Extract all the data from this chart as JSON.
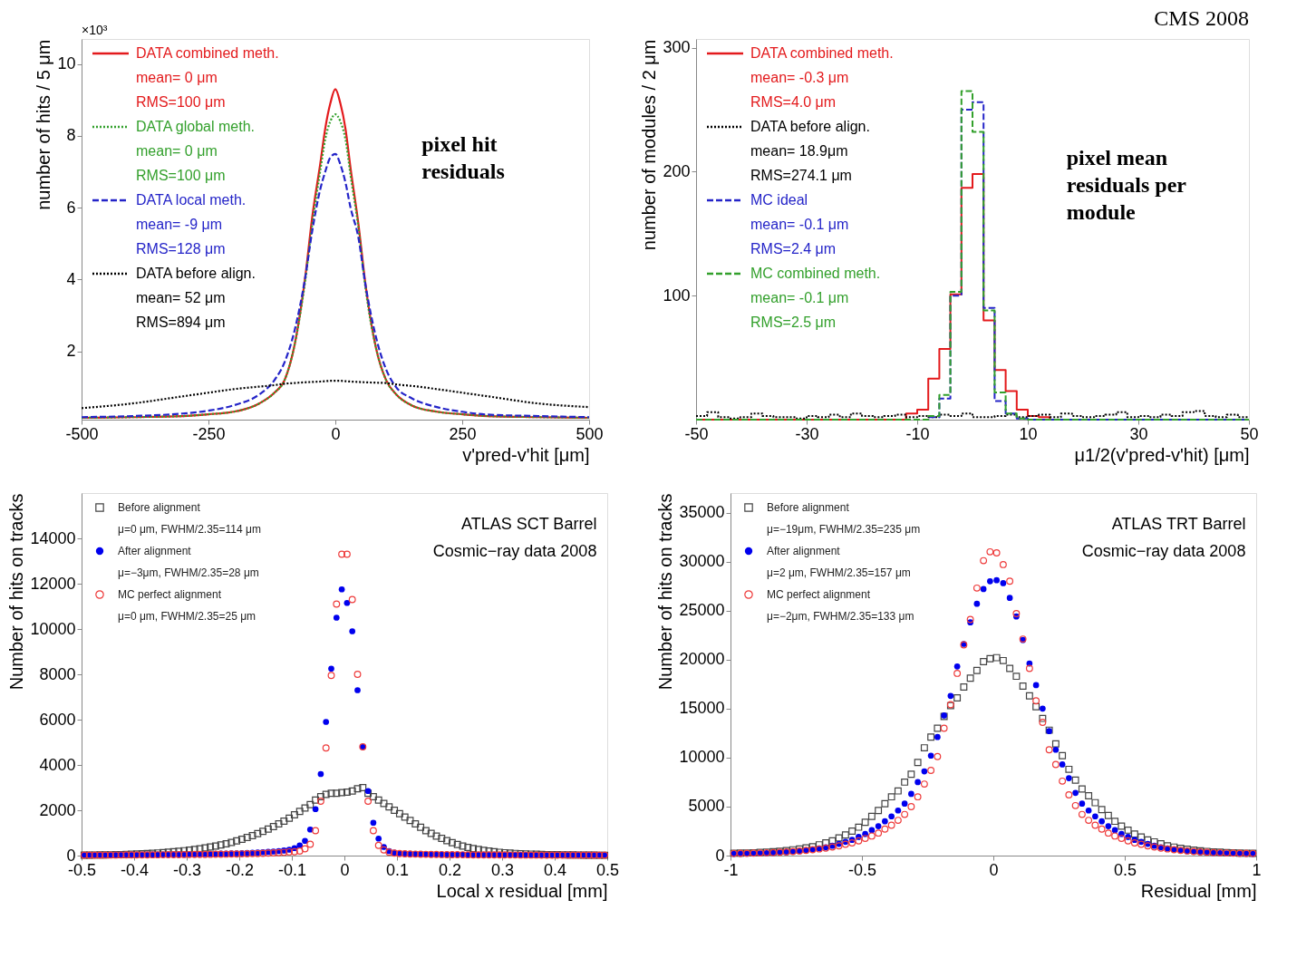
{
  "chart_data": [
    {
      "type": "line",
      "xlabel": "v'pred-v'hit [μm]",
      "ylabel": "number of hits / 5 μm",
      "xlim": [
        -500,
        500
      ],
      "ylim": [
        0.1,
        10.7
      ],
      "xticks": [
        -500,
        -250,
        0,
        250,
        500
      ],
      "yticks": [
        2,
        4,
        6,
        8,
        10
      ],
      "legend": "top left",
      "annotations": [
        "×10³",
        "pixel hit\nresiduals"
      ],
      "x": [
        -500,
        -400,
        -300,
        -250,
        -200,
        -150,
        -120,
        -100,
        -80,
        -60,
        -45,
        -30,
        -20,
        -10,
        0,
        10,
        20,
        30,
        45,
        60,
        80,
        100,
        120,
        150,
        200,
        250,
        300,
        400,
        500
      ],
      "series": [
        {
          "name": "DATA combined meth.\nmean= 0 μm\nRMS=100 μm",
          "color": "#e31a1c",
          "line_style": "solid",
          "values": [
            0.15,
            0.17,
            0.2,
            0.25,
            0.32,
            0.55,
            0.85,
            1.2,
            2.2,
            4.0,
            5.8,
            7.2,
            8.2,
            8.9,
            9.3,
            8.9,
            8.2,
            7.1,
            5.6,
            3.8,
            2.1,
            1.2,
            0.8,
            0.5,
            0.32,
            0.25,
            0.2,
            0.17,
            0.15
          ]
        },
        {
          "name": "DATA global meth.\nmean= 0 μm\nRMS=100 μm",
          "color": "#33a02c",
          "line_style": "dotted",
          "values": [
            0.15,
            0.17,
            0.2,
            0.25,
            0.32,
            0.55,
            0.85,
            1.2,
            2.2,
            3.9,
            5.6,
            7.0,
            7.9,
            8.4,
            8.6,
            8.4,
            7.9,
            6.9,
            5.5,
            3.7,
            2.1,
            1.2,
            0.8,
            0.5,
            0.32,
            0.25,
            0.2,
            0.17,
            0.15
          ]
        },
        {
          "name": "DATA local meth.\nmean= -9 μm\nRMS=128 μm",
          "color": "#2424c8",
          "line_style": "dashed",
          "values": [
            0.17,
            0.2,
            0.27,
            0.35,
            0.5,
            0.8,
            1.2,
            1.7,
            2.6,
            4.0,
            5.4,
            6.5,
            7.0,
            7.4,
            7.5,
            7.2,
            6.7,
            6.0,
            5.2,
            3.8,
            2.4,
            1.5,
            1.0,
            0.7,
            0.45,
            0.32,
            0.24,
            0.2,
            0.17
          ]
        },
        {
          "name": "DATA before align.\nmean= 52 μm\nRMS=894 μm",
          "color": "#000000",
          "line_style": "dotted",
          "values": [
            0.42,
            0.55,
            0.75,
            0.85,
            0.95,
            1.02,
            1.06,
            1.1,
            1.12,
            1.14,
            1.15,
            1.16,
            1.17,
            1.18,
            1.18,
            1.18,
            1.17,
            1.16,
            1.15,
            1.14,
            1.13,
            1.12,
            1.08,
            1.04,
            0.95,
            0.85,
            0.75,
            0.55,
            0.45
          ]
        }
      ]
    },
    {
      "type": "histogram",
      "xlabel": "μ1/2(v'pred-v'hit) [μm]",
      "ylabel": "number of modules / 2 μm",
      "xlim": [
        -50,
        50
      ],
      "ylim": [
        0,
        307
      ],
      "xticks": [
        -50,
        -30,
        -10,
        10,
        30,
        50
      ],
      "yticks": [
        100,
        200,
        300
      ],
      "legend": "top left",
      "annotations": [
        "CMS 2008",
        "pixel  mean\nresiduals per\nmodule"
      ],
      "bins": [
        -50,
        -48,
        -46,
        -44,
        -42,
        -40,
        -38,
        -36,
        -34,
        -32,
        -30,
        -28,
        -26,
        -24,
        -22,
        -20,
        -18,
        -16,
        -14,
        -12,
        -10,
        -8,
        -6,
        -4,
        -2,
        0,
        2,
        4,
        6,
        8,
        10,
        12,
        14,
        16,
        18,
        20,
        22,
        24,
        26,
        28,
        30,
        32,
        34,
        36,
        38,
        40,
        42,
        44,
        46,
        48,
        50
      ],
      "series": [
        {
          "name": "DATA combined meth.\nmean= -0.3 μm\nRMS=4.0 μm",
          "color": "#e31a1c",
          "line_style": "solid",
          "values": [
            0,
            0,
            0,
            0,
            0,
            0,
            0,
            0,
            0,
            0,
            0,
            0,
            0,
            0,
            0,
            0,
            0,
            0,
            0,
            5,
            8,
            33,
            57,
            101,
            187,
            198,
            80,
            40,
            23,
            8,
            3,
            2,
            0,
            0,
            0,
            0,
            0,
            0,
            0,
            0,
            0,
            0,
            0,
            0,
            0,
            0,
            0,
            0,
            0,
            0
          ]
        },
        {
          "name": "DATA before align.\nmean= 18.9μm\nRMS=274.1 μm",
          "color": "#000000",
          "line_style": "dotted",
          "values": [
            3,
            6,
            2,
            1,
            2,
            5,
            3,
            2,
            2,
            1,
            3,
            2,
            4,
            2,
            5,
            3,
            2,
            3,
            4,
            2,
            3,
            2,
            4,
            3,
            5,
            2,
            2,
            3,
            4,
            2,
            3,
            4,
            2,
            5,
            3,
            2,
            3,
            4,
            6,
            2,
            3,
            2,
            4,
            3,
            6,
            7,
            3,
            2,
            4,
            2
          ]
        },
        {
          "name": "MC ideal\nmean= -0.1 μm\nRMS=2.4 μm",
          "color": "#2424c8",
          "line_style": "dashed",
          "values": [
            0,
            0,
            0,
            0,
            0,
            0,
            0,
            0,
            0,
            0,
            0,
            0,
            0,
            0,
            0,
            0,
            0,
            0,
            0,
            0,
            0,
            2,
            17,
            100,
            250,
            256,
            90,
            15,
            5,
            1,
            0,
            0,
            0,
            0,
            0,
            0,
            0,
            0,
            0,
            0,
            0,
            0,
            0,
            0,
            0,
            0,
            0,
            0,
            0,
            0
          ]
        },
        {
          "name": "MC combined meth.\nmean= -0.1 μm\nRMS=2.5 μm",
          "color": "#33a02c",
          "line_style": "dashed",
          "values": [
            0,
            0,
            0,
            0,
            0,
            0,
            0,
            0,
            0,
            0,
            0,
            0,
            0,
            0,
            0,
            0,
            0,
            0,
            0,
            0,
            0,
            3,
            20,
            103,
            265,
            232,
            88,
            22,
            5,
            1,
            0,
            0,
            0,
            0,
            0,
            0,
            0,
            0,
            0,
            0,
            0,
            0,
            0,
            0,
            0,
            0,
            0,
            0,
            0,
            0
          ]
        }
      ]
    },
    {
      "type": "scatter",
      "xlabel": "Local x residual [mm]",
      "ylabel": "Number of hits on tracks",
      "xlim": [
        -0.5,
        0.5
      ],
      "ylim": [
        0,
        16000
      ],
      "xticks": [
        -0.5,
        -0.4,
        -0.3,
        -0.2,
        -0.1,
        0,
        0.1,
        0.2,
        0.3,
        0.4,
        0.5
      ],
      "yticks": [
        0,
        2000,
        4000,
        6000,
        8000,
        10000,
        12000,
        14000
      ],
      "legend": "top left",
      "annotations": [
        "ATLAS SCT Barrel",
        "Cosmic−ray data 2008"
      ],
      "x": [
        -0.495,
        -0.485,
        -0.475,
        -0.465,
        -0.455,
        -0.445,
        -0.435,
        -0.425,
        -0.415,
        -0.405,
        -0.395,
        -0.385,
        -0.375,
        -0.365,
        -0.355,
        -0.345,
        -0.335,
        -0.325,
        -0.315,
        -0.305,
        -0.295,
        -0.285,
        -0.275,
        -0.265,
        -0.255,
        -0.245,
        -0.235,
        -0.225,
        -0.215,
        -0.205,
        -0.195,
        -0.185,
        -0.175,
        -0.165,
        -0.155,
        -0.145,
        -0.135,
        -0.125,
        -0.115,
        -0.105,
        -0.095,
        -0.085,
        -0.075,
        -0.065,
        -0.055,
        -0.045,
        -0.035,
        -0.025,
        -0.015,
        -0.005,
        0.005,
        0.015,
        0.025,
        0.035,
        0.045,
        0.055,
        0.065,
        0.075,
        0.085,
        0.095,
        0.105,
        0.115,
        0.125,
        0.135,
        0.145,
        0.155,
        0.165,
        0.175,
        0.185,
        0.195,
        0.205,
        0.215,
        0.225,
        0.235,
        0.245,
        0.255,
        0.265,
        0.275,
        0.285,
        0.295,
        0.305,
        0.315,
        0.325,
        0.335,
        0.345,
        0.355,
        0.365,
        0.375,
        0.385,
        0.395,
        0.405,
        0.415,
        0.425,
        0.435,
        0.445,
        0.455,
        0.465,
        0.475,
        0.485,
        0.495
      ],
      "series": [
        {
          "name": "Before alignment\nμ=0 μm, FWHM/2.35=114 μm",
          "color": "#444444",
          "marker": "square",
          "values": [
            20,
            22,
            25,
            28,
            32,
            36,
            40,
            45,
            50,
            60,
            70,
            80,
            90,
            100,
            115,
            130,
            150,
            170,
            190,
            215,
            240,
            270,
            300,
            340,
            380,
            420,
            470,
            520,
            580,
            650,
            720,
            800,
            880,
            970,
            1070,
            1170,
            1280,
            1400,
            1520,
            1650,
            1800,
            1950,
            2100,
            2250,
            2450,
            2600,
            2700,
            2750,
            2750,
            2780,
            2800,
            2850,
            2950,
            3000,
            2750,
            2600,
            2450,
            2300,
            2150,
            2000,
            1850,
            1700,
            1550,
            1400,
            1250,
            1100,
            980,
            860,
            760,
            660,
            570,
            490,
            420,
            360,
            310,
            270,
            230,
            200,
            170,
            145,
            125,
            110,
            95,
            85,
            75,
            65,
            58,
            52,
            46,
            42,
            38,
            34,
            30,
            27,
            24,
            22,
            20,
            18,
            16,
            15
          ]
        },
        {
          "name": "After alignment\nμ=−3μm, FWHM/2.35=28 μm",
          "color": "#0000ee",
          "marker": "circle",
          "values": [
            25,
            25,
            28,
            28,
            30,
            30,
            32,
            33,
            35,
            37,
            38,
            40,
            42,
            44,
            46,
            48,
            50,
            52,
            55,
            58,
            60,
            63,
            66,
            70,
            74,
            78,
            82,
            88,
            94,
            100,
            108,
            115,
            125,
            135,
            150,
            165,
            180,
            200,
            225,
            260,
            330,
            450,
            650,
            1150,
            2050,
            3600,
            5900,
            8250,
            10500,
            11750,
            11150,
            9900,
            7300,
            4800,
            2850,
            1450,
            750,
            380,
            200,
            130,
            100,
            85,
            75,
            68,
            62,
            58,
            54,
            50,
            47,
            44,
            42,
            40,
            38,
            36,
            35,
            34,
            33,
            32,
            31,
            30,
            29,
            28,
            28,
            27,
            27,
            26,
            26,
            25,
            25,
            25,
            24,
            24,
            24,
            23,
            23,
            23,
            22,
            22,
            22,
            22
          ]
        },
        {
          "name": "MC perfect alignment\nμ=0 μm, FWHM/2.35=25 μm",
          "color": "#ee3b3b",
          "marker": "circle",
          "values": [
            20,
            20,
            22,
            22,
            24,
            24,
            25,
            26,
            27,
            28,
            30,
            31,
            32,
            34,
            35,
            36,
            38,
            40,
            42,
            44,
            46,
            48,
            50,
            52,
            55,
            58,
            60,
            64,
            68,
            72,
            76,
            80,
            86,
            92,
            100,
            108,
            118,
            130,
            145,
            165,
            170,
            200,
            300,
            500,
            1100,
            2400,
            4750,
            7950,
            11100,
            13300,
            13300,
            11300,
            8000,
            4800,
            2400,
            1100,
            450,
            250,
            150,
            110,
            90,
            80,
            72,
            66,
            60,
            56,
            52,
            48,
            45,
            42,
            40,
            38,
            36,
            34,
            33,
            32,
            31,
            30,
            29,
            28,
            27,
            26,
            26,
            25,
            25,
            24,
            24,
            23,
            23,
            22,
            22,
            21,
            21,
            20,
            20,
            20,
            19,
            19,
            18,
            18
          ]
        }
      ]
    },
    {
      "type": "scatter",
      "xlabel": "Residual [mm]",
      "ylabel": "Number of hits on tracks",
      "xlim": [
        -1,
        1
      ],
      "ylim": [
        0,
        37000
      ],
      "xticks": [
        -1,
        -0.5,
        0,
        0.5,
        1
      ],
      "yticks": [
        0,
        5000,
        10000,
        15000,
        20000,
        25000,
        30000,
        35000
      ],
      "legend": "top left",
      "annotations": [
        "ATLAS TRT Barrel",
        "Cosmic−ray data 2008"
      ],
      "x": [
        -0.9875,
        -0.9625,
        -0.9375,
        -0.9125,
        -0.8875,
        -0.8625,
        -0.8375,
        -0.8125,
        -0.7875,
        -0.7625,
        -0.7375,
        -0.7125,
        -0.6875,
        -0.6625,
        -0.6375,
        -0.6125,
        -0.5875,
        -0.5625,
        -0.5375,
        -0.5125,
        -0.4875,
        -0.4625,
        -0.4375,
        -0.4125,
        -0.3875,
        -0.3625,
        -0.3375,
        -0.3125,
        -0.2875,
        -0.2625,
        -0.2375,
        -0.2125,
        -0.1875,
        -0.1625,
        -0.1375,
        -0.1125,
        -0.0875,
        -0.0625,
        -0.0375,
        -0.0125,
        0.0125,
        0.0375,
        0.0625,
        0.0875,
        0.1125,
        0.1375,
        0.1625,
        0.1875,
        0.2125,
        0.2375,
        0.2625,
        0.2875,
        0.3125,
        0.3375,
        0.3625,
        0.3875,
        0.4125,
        0.4375,
        0.4625,
        0.4875,
        0.5125,
        0.5375,
        0.5625,
        0.5875,
        0.6125,
        0.6375,
        0.6625,
        0.6875,
        0.7125,
        0.7375,
        0.7625,
        0.7875,
        0.8125,
        0.8375,
        0.8625,
        0.8875,
        0.9125,
        0.9375,
        0.9625,
        0.9875
      ],
      "series": [
        {
          "name": "Before alignment\nμ=−19μm, FWHM/2.35=235 μm",
          "color": "#444444",
          "marker": "square",
          "values": [
            240,
            250,
            270,
            290,
            320,
            360,
            400,
            450,
            510,
            590,
            680,
            780,
            900,
            1100,
            1300,
            1500,
            1800,
            2100,
            2500,
            2900,
            3400,
            4000,
            4600,
            5300,
            6000,
            6600,
            7500,
            8300,
            9500,
            11000,
            12100,
            13000,
            14200,
            15300,
            16100,
            17200,
            18100,
            18900,
            19800,
            20100,
            20200,
            19900,
            19100,
            18300,
            17300,
            16300,
            15200,
            14000,
            12800,
            11400,
            10200,
            8800,
            7700,
            6800,
            6100,
            5400,
            4700,
            4100,
            3500,
            3000,
            2600,
            2200,
            1900,
            1600,
            1400,
            1200,
            1000,
            870,
            750,
            650,
            560,
            490,
            430,
            380,
            340,
            300,
            280,
            260,
            240,
            230
          ]
        },
        {
          "name": "After alignment\nμ=2 μm, FWHM/2.35=157 μm",
          "color": "#0000ee",
          "marker": "circle",
          "values": [
            180,
            190,
            200,
            210,
            230,
            250,
            280,
            310,
            350,
            400,
            460,
            530,
            620,
            720,
            850,
            1000,
            1200,
            1400,
            1600,
            1900,
            2200,
            2600,
            3000,
            3500,
            4000,
            4600,
            5300,
            6300,
            7500,
            8600,
            10200,
            12100,
            14300,
            16300,
            19300,
            21600,
            23800,
            25700,
            27200,
            28000,
            28100,
            27800,
            26300,
            24400,
            22000,
            19600,
            17400,
            15000,
            12700,
            10800,
            9300,
            7900,
            6400,
            5300,
            4600,
            4000,
            3500,
            3000,
            2600,
            2200,
            1900,
            1600,
            1400,
            1200,
            1000,
            850,
            720,
            620,
            530,
            460,
            400,
            350,
            310,
            280,
            250,
            230,
            210,
            200,
            190,
            180
          ]
        },
        {
          "name": "MC perfect alignment\nμ=−2μm, FWHM/2.35=133 μm",
          "color": "#ee3b3b",
          "marker": "circle",
          "values": [
            220,
            230,
            240,
            250,
            270,
            290,
            310,
            340,
            380,
            420,
            470,
            530,
            600,
            680,
            770,
            880,
            1000,
            1150,
            1300,
            1500,
            1750,
            2000,
            2300,
            2700,
            3100,
            3600,
            4200,
            5000,
            6000,
            7300,
            8700,
            10100,
            13000,
            15400,
            18600,
            21500,
            24100,
            27300,
            30100,
            31000,
            30900,
            29700,
            28000,
            24700,
            22100,
            19100,
            15800,
            13600,
            10800,
            9300,
            7600,
            6200,
            5100,
            4200,
            3600,
            3100,
            2700,
            2300,
            2000,
            1750,
            1500,
            1300,
            1150,
            1000,
            880,
            770,
            680,
            600,
            530,
            470,
            420,
            380,
            340,
            310,
            290,
            270,
            250,
            240,
            230,
            220
          ]
        }
      ]
    }
  ]
}
